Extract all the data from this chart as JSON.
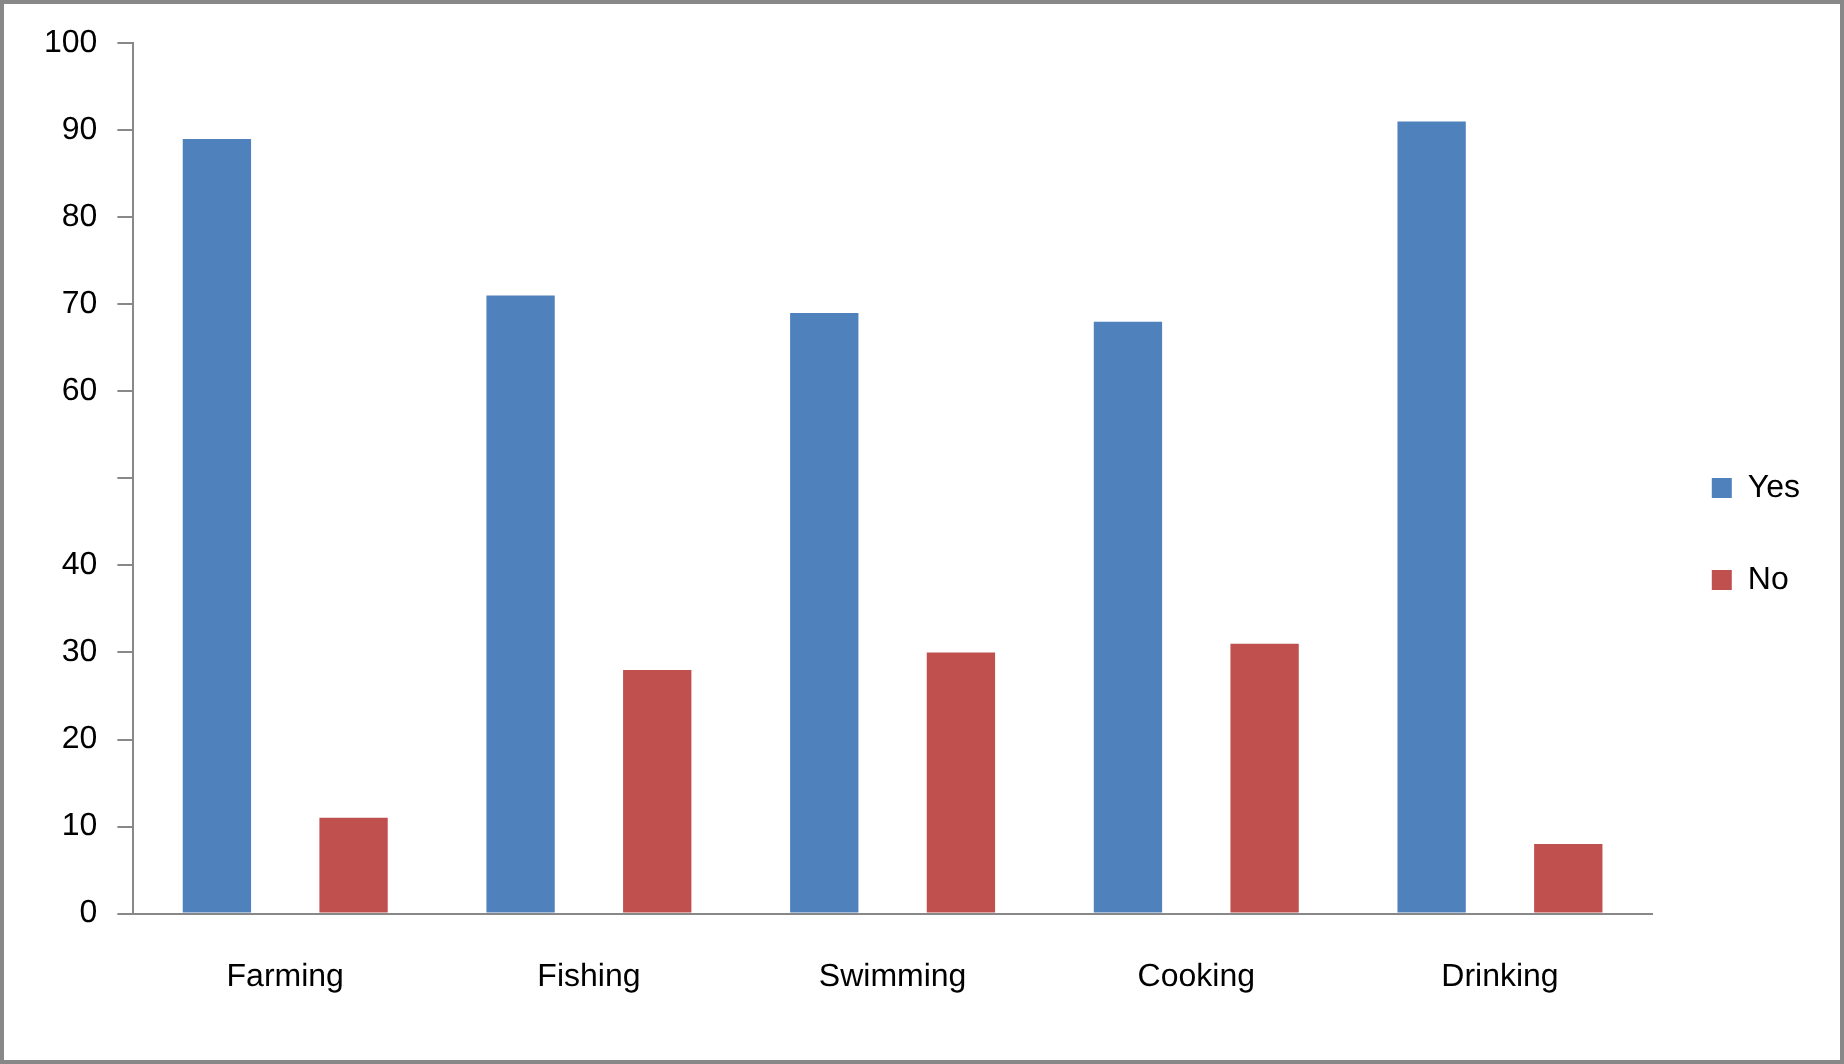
{
  "chart_data": {
    "type": "bar",
    "categories": [
      "Farming",
      "Fishing",
      "Swimming",
      "Cooking",
      "Drinking"
    ],
    "series": [
      {
        "name": "Yes",
        "color": "#4f81bd",
        "values": [
          89,
          71,
          69,
          68,
          91
        ]
      },
      {
        "name": "No",
        "color": "#c0504d",
        "values": [
          11,
          28,
          30,
          31,
          8
        ]
      }
    ],
    "ylim": [
      0,
      100
    ],
    "yticks": [
      0,
      10,
      20,
      30,
      40,
      {
        "value": 50,
        "label": null
      },
      60,
      70,
      80,
      90,
      100
    ],
    "grid": false,
    "legend": "right"
  }
}
